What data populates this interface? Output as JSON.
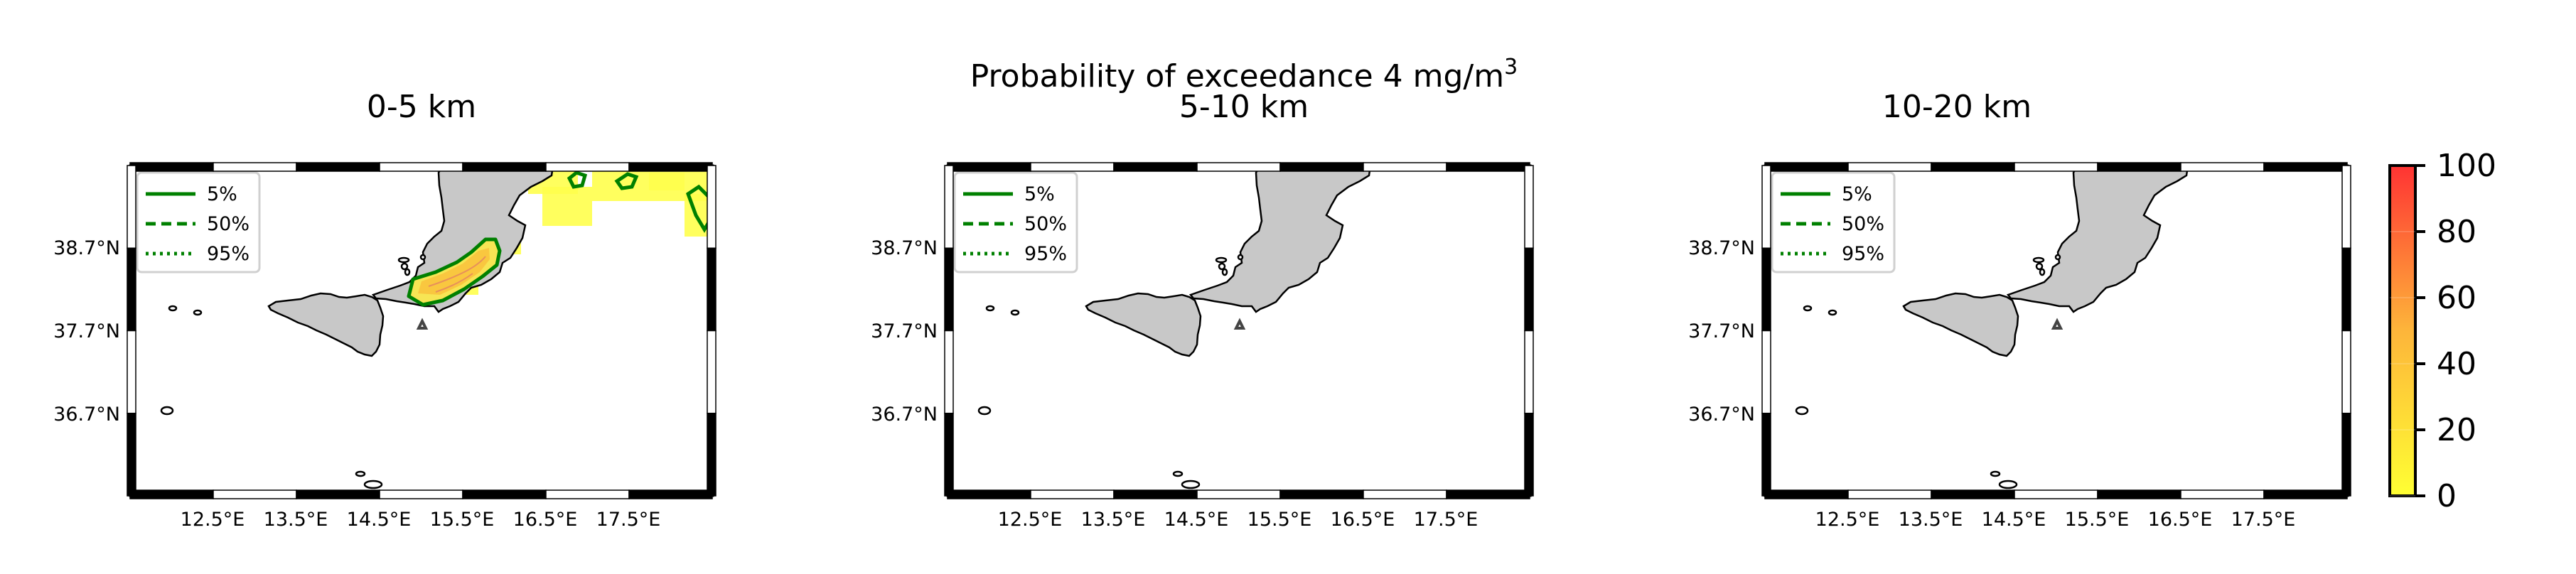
{
  "figure": {
    "title_line": "Probability of exceedance 4 mg/m",
    "title_superscript": "3",
    "volcano_marker": "triangle-icon",
    "land_color": "#c8c8c8",
    "contour_color": "#008000"
  },
  "panels": [
    {
      "title": "0-5 km"
    },
    {
      "title": "5-10 km"
    },
    {
      "title": "10-20 km"
    }
  ],
  "legend": {
    "items": [
      {
        "label": "5%",
        "style": "solid"
      },
      {
        "label": "50%",
        "style": "dashed"
      },
      {
        "label": "95%",
        "style": "dotted"
      }
    ]
  },
  "axes": {
    "lat_ticks": [
      "38.7°N",
      "37.7°N",
      "36.7°N"
    ],
    "lon_ticks": [
      "12.5°E",
      "13.5°E",
      "14.5°E",
      "15.5°E",
      "16.5°E",
      "17.5°E"
    ]
  },
  "colorbar": {
    "ticks": [
      "100",
      "80",
      "60",
      "40",
      "20",
      "0"
    ],
    "min": 0,
    "max": 100,
    "low_color": "#ffff33",
    "high_color": "#ff3333"
  },
  "chart_data": {
    "type": "heatmap",
    "title": "Probability of exceedance 4 mg/m3",
    "panels": [
      "0-5 km",
      "5-10 km",
      "10-20 km"
    ],
    "xlim": [
      11.5,
      18.5
    ],
    "ylim": [
      35.7,
      39.7
    ],
    "contour_levels": [
      "5%",
      "50%",
      "95%"
    ],
    "colorbar_range": [
      0,
      100
    ],
    "volcano": {
      "lon": 15.0,
      "lat": 37.75
    },
    "exceedance_areas": [
      {
        "panel": "0-5 km",
        "region": "Etna to Calabria plume",
        "level": "5%"
      },
      {
        "panel": "5-10 km",
        "region": "none"
      },
      {
        "panel": "10-20 km",
        "region": "none"
      }
    ]
  }
}
